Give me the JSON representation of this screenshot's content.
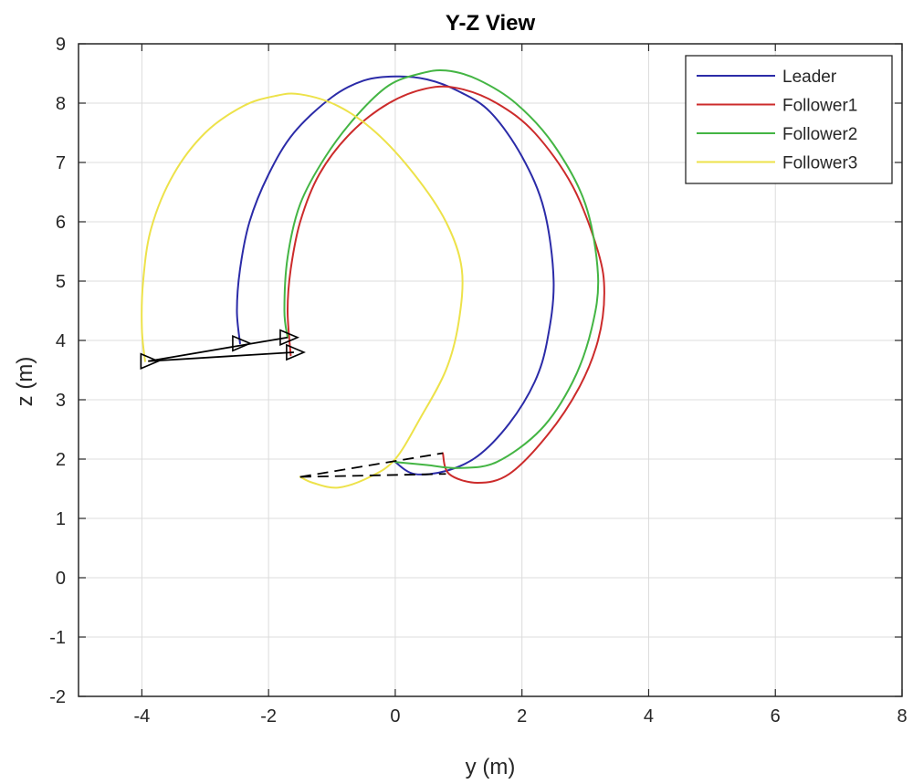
{
  "chart_data": {
    "type": "line",
    "title": "Y-Z View",
    "xlabel": "y (m)",
    "ylabel": "z (m)",
    "xlim": [
      -5,
      8
    ],
    "ylim": [
      -2,
      9
    ],
    "xticks": [
      -4,
      -2,
      0,
      2,
      4,
      6,
      8
    ],
    "yticks": [
      -2,
      -1,
      0,
      1,
      2,
      3,
      4,
      5,
      6,
      7,
      8,
      9
    ],
    "xtick_labels": [
      "-4",
      "-2",
      "0",
      "2",
      "4",
      "6",
      "8"
    ],
    "ytick_labels": [
      "-2",
      "-1",
      "0",
      "1",
      "2",
      "3",
      "4",
      "5",
      "6",
      "7",
      "8",
      "9"
    ],
    "grid": true,
    "legend_position": "top-right",
    "series": [
      {
        "name": "Leader",
        "color": "#2b2ba8",
        "points": [
          [
            -2.45,
            3.95
          ],
          [
            -2.5,
            4.5
          ],
          [
            -2.45,
            5.2
          ],
          [
            -2.3,
            6.0
          ],
          [
            -2.0,
            6.8
          ],
          [
            -1.6,
            7.5
          ],
          [
            -1.0,
            8.1
          ],
          [
            -0.5,
            8.38
          ],
          [
            0.0,
            8.45
          ],
          [
            0.5,
            8.4
          ],
          [
            1.0,
            8.2
          ],
          [
            1.5,
            7.85
          ],
          [
            2.0,
            7.1
          ],
          [
            2.35,
            6.2
          ],
          [
            2.5,
            5.0
          ],
          [
            2.4,
            4.0
          ],
          [
            2.2,
            3.3
          ],
          [
            1.8,
            2.6
          ],
          [
            1.3,
            2.05
          ],
          [
            0.8,
            1.8
          ],
          [
            0.3,
            1.75
          ],
          [
            0.0,
            1.95
          ]
        ]
      },
      {
        "name": "Follower1",
        "color": "#cc2b2b",
        "points": [
          [
            -1.65,
            3.75
          ],
          [
            -1.7,
            4.5
          ],
          [
            -1.65,
            5.2
          ],
          [
            -1.5,
            6.0
          ],
          [
            -1.2,
            6.8
          ],
          [
            -0.7,
            7.5
          ],
          [
            -0.1,
            8.0
          ],
          [
            0.5,
            8.25
          ],
          [
            1.0,
            8.25
          ],
          [
            1.6,
            8.0
          ],
          [
            2.2,
            7.5
          ],
          [
            2.8,
            6.6
          ],
          [
            3.2,
            5.5
          ],
          [
            3.3,
            4.8
          ],
          [
            3.2,
            4.0
          ],
          [
            2.9,
            3.2
          ],
          [
            2.4,
            2.4
          ],
          [
            1.8,
            1.75
          ],
          [
            1.3,
            1.6
          ],
          [
            0.85,
            1.75
          ],
          [
            0.75,
            2.1
          ]
        ]
      },
      {
        "name": "Follower2",
        "color": "#44b544",
        "points": [
          [
            -1.7,
            4.05
          ],
          [
            -1.75,
            4.5
          ],
          [
            -1.7,
            5.4
          ],
          [
            -1.5,
            6.3
          ],
          [
            -1.1,
            7.1
          ],
          [
            -0.6,
            7.8
          ],
          [
            -0.1,
            8.3
          ],
          [
            0.4,
            8.5
          ],
          [
            0.8,
            8.55
          ],
          [
            1.3,
            8.4
          ],
          [
            1.9,
            8.0
          ],
          [
            2.5,
            7.3
          ],
          [
            3.0,
            6.3
          ],
          [
            3.2,
            5.1
          ],
          [
            3.1,
            4.2
          ],
          [
            2.8,
            3.3
          ],
          [
            2.3,
            2.5
          ],
          [
            1.6,
            1.95
          ],
          [
            1.0,
            1.85
          ],
          [
            0.5,
            1.9
          ],
          [
            0.0,
            1.95
          ]
        ]
      },
      {
        "name": "Follower3",
        "color": "#ede24a",
        "points": [
          [
            -3.95,
            3.65
          ],
          [
            -4.0,
            4.2
          ],
          [
            -3.98,
            5.0
          ],
          [
            -3.85,
            5.9
          ],
          [
            -3.5,
            6.8
          ],
          [
            -3.0,
            7.5
          ],
          [
            -2.4,
            7.95
          ],
          [
            -1.9,
            8.12
          ],
          [
            -1.5,
            8.15
          ],
          [
            -0.9,
            7.95
          ],
          [
            -0.3,
            7.5
          ],
          [
            0.3,
            6.8
          ],
          [
            0.8,
            6.0
          ],
          [
            1.05,
            5.2
          ],
          [
            1.0,
            4.3
          ],
          [
            0.8,
            3.5
          ],
          [
            0.4,
            2.7
          ],
          [
            0.0,
            2.0
          ],
          [
            -0.4,
            1.7
          ],
          [
            -0.9,
            1.52
          ],
          [
            -1.3,
            1.6
          ],
          [
            -1.5,
            1.7
          ]
        ]
      }
    ],
    "formation_links": [
      {
        "style": "solid",
        "points": [
          [
            -3.9,
            3.65
          ],
          [
            -1.7,
            4.05
          ]
        ]
      },
      {
        "style": "solid",
        "points": [
          [
            -3.9,
            3.65
          ],
          [
            -1.6,
            3.8
          ]
        ]
      },
      {
        "style": "dashed",
        "points": [
          [
            -1.5,
            1.7
          ],
          [
            0.75,
            2.1
          ]
        ]
      },
      {
        "style": "dashed",
        "points": [
          [
            -1.5,
            1.7
          ],
          [
            0.8,
            1.75
          ]
        ]
      }
    ],
    "markers": [
      {
        "shape": "triangle",
        "color": "#000000",
        "x": -3.9,
        "y": 3.65
      },
      {
        "shape": "triangle",
        "color": "#000000",
        "x": -1.7,
        "y": 4.05
      },
      {
        "shape": "triangle",
        "color": "#000000",
        "x": -1.6,
        "y": 3.8
      },
      {
        "shape": "triangle",
        "color": "#aa22aa",
        "x": -2.45,
        "y": 3.95
      }
    ]
  }
}
